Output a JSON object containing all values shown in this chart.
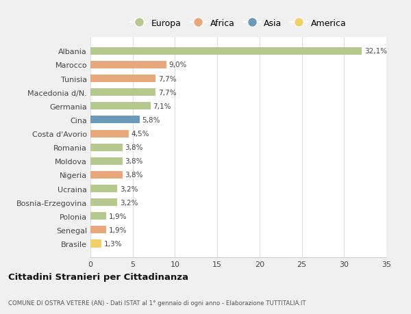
{
  "categories": [
    "Albania",
    "Marocco",
    "Tunisia",
    "Macedonia d/N.",
    "Germania",
    "Cina",
    "Costa d'Avorio",
    "Romania",
    "Moldova",
    "Nigeria",
    "Ucraina",
    "Bosnia-Erzegovina",
    "Polonia",
    "Senegal",
    "Brasile"
  ],
  "values": [
    32.1,
    9.0,
    7.7,
    7.7,
    7.1,
    5.8,
    4.5,
    3.8,
    3.8,
    3.8,
    3.2,
    3.2,
    1.9,
    1.9,
    1.3
  ],
  "labels": [
    "32,1%",
    "9,0%",
    "7,7%",
    "7,7%",
    "7,1%",
    "5,8%",
    "4,5%",
    "3,8%",
    "3,8%",
    "3,8%",
    "3,2%",
    "3,2%",
    "1,9%",
    "1,9%",
    "1,3%"
  ],
  "colors": [
    "#b5c98e",
    "#e8a87c",
    "#e8a87c",
    "#b5c98e",
    "#b5c98e",
    "#6b9ab8",
    "#e8a87c",
    "#b5c98e",
    "#b5c98e",
    "#e8a87c",
    "#b5c98e",
    "#b5c98e",
    "#b5c98e",
    "#e8a87c",
    "#f0d06a"
  ],
  "legend": [
    {
      "label": "Europa",
      "color": "#b5c98e"
    },
    {
      "label": "Africa",
      "color": "#e8a87c"
    },
    {
      "label": "Asia",
      "color": "#6b9ab8"
    },
    {
      "label": "America",
      "color": "#f0d06a"
    }
  ],
  "title": "Cittadini Stranieri per Cittadinanza",
  "subtitle": "COMUNE DI OSTRA VETERE (AN) - Dati ISTAT al 1° gennaio di ogni anno - Elaborazione TUTTITALIA.IT",
  "xlim": [
    0,
    35
  ],
  "xticks": [
    0,
    5,
    10,
    15,
    20,
    25,
    30,
    35
  ],
  "background_color": "#f0f0f0",
  "plot_background": "#ffffff"
}
